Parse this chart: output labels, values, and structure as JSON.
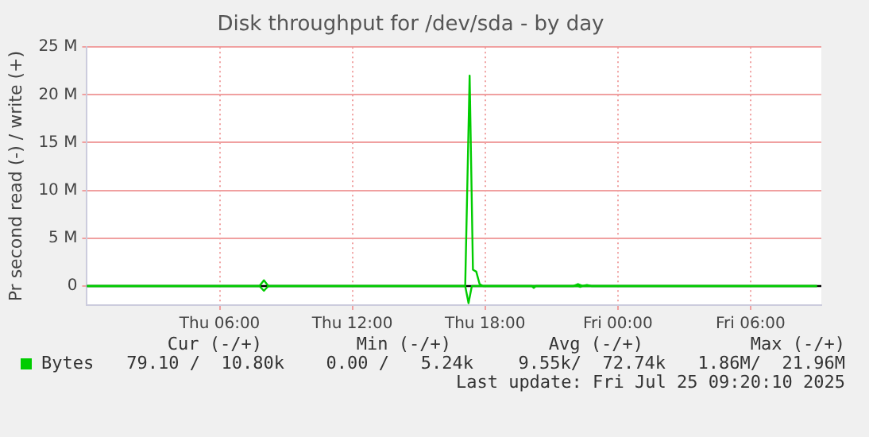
{
  "chart_data": {
    "type": "line",
    "title": "Disk throughput for /dev/sda - by day",
    "ylabel": "Pr second read (-) / write (+)",
    "xlim": [
      "2025-07-24T00:00",
      "2025-07-25T09:12"
    ],
    "xticks": [
      {
        "value": "2025-07-24T06:00",
        "label": "Thu 06:00"
      },
      {
        "value": "2025-07-24T12:00",
        "label": "Thu 12:00"
      },
      {
        "value": "2025-07-24T18:00",
        "label": "Thu 18:00"
      },
      {
        "value": "2025-07-25T00:00",
        "label": "Fri 00:00"
      },
      {
        "value": "2025-07-25T06:00",
        "label": "Fri 06:00"
      }
    ],
    "ylim": [
      -2,
      25
    ],
    "yticks": [
      0,
      {
        "value": 5,
        "label": "5 M"
      },
      {
        "value": 10,
        "label": "10 M"
      },
      {
        "value": 15,
        "label": "15 M"
      },
      {
        "value": 20,
        "label": "20 M"
      },
      {
        "value": 25,
        "label": "25 M"
      }
    ],
    "series": [
      {
        "name": "Bytes",
        "color": "#00cc00",
        "x": [
          "2025-07-24T00:00",
          "2025-07-24T07:48",
          "2025-07-24T08:00",
          "2025-07-24T08:12",
          "2025-07-24T17:06",
          "2025-07-24T17:18",
          "2025-07-24T17:27",
          "2025-07-24T17:36",
          "2025-07-24T17:45",
          "2025-07-24T17:54",
          "2025-07-24T22:00",
          "2025-07-24T22:12",
          "2025-07-24T22:24",
          "2025-07-24T22:36",
          "2025-07-24T22:48",
          "2025-07-25T09:00"
        ],
        "values": [
          0,
          0,
          0.6,
          0,
          0,
          22,
          1.7,
          1.5,
          0.2,
          0,
          0,
          0.2,
          0,
          0.1,
          0,
          0
        ]
      },
      {
        "color": "#00cc00",
        "x": [
          "2025-07-24T00:00",
          "2025-07-24T07:48",
          "2025-07-24T08:00",
          "2025-07-24T08:12",
          "2025-07-24T17:06",
          "2025-07-24T17:15",
          "2025-07-24T17:24",
          "2025-07-24T20:06",
          "2025-07-24T20:12",
          "2025-07-24T20:18",
          "2025-07-24T22:12",
          "2025-07-24T22:18",
          "2025-07-24T22:24",
          "2025-07-25T09:00"
        ],
        "values": [
          0,
          0,
          -0.5,
          0,
          0,
          -1.8,
          0,
          0,
          -0.2,
          0,
          0,
          -0.1,
          0,
          0
        ]
      }
    ],
    "ref_lines": [
      {
        "axis": "y",
        "value": 0,
        "color": "#000000"
      }
    ],
    "grid": true,
    "marker": "none",
    "line_style": "solid",
    "legend": "bottom left",
    "annotations": [
      "Cur (-/+)",
      "Min (-/+)",
      "Avg (-/+)",
      "Max (-/+)",
      "79.10 /  10.80k",
      "0.00 /   5.24k",
      "9.55k/  72.74k",
      "1.86M/  21.96M",
      "Last update: Fri Jul 25 09:20:10 2025"
    ]
  }
}
